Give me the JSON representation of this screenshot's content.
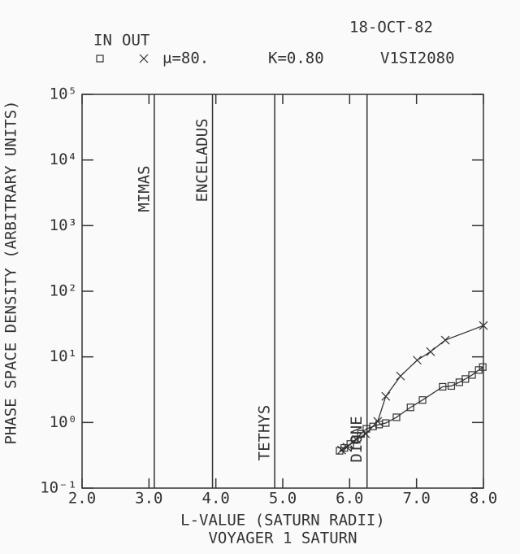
{
  "chart_data": {
    "type": "line",
    "date": "18-OCT-82",
    "title": "VOYAGER 1 SATURN",
    "parameters": [
      "μ=80.",
      "K=0.80",
      "V1SI2080"
    ],
    "xlabel": "L-VALUE (SATURN RADII)",
    "ylabel": "PHASE SPACE DENSITY (ARBITRARY UNITS)",
    "log_y": true,
    "xlim": [
      2.0,
      8.0
    ],
    "ylim": [
      0.1,
      100000
    ],
    "xticks": [
      {
        "value": 2,
        "label": "2.0"
      },
      {
        "value": 3,
        "label": "3.0"
      },
      {
        "value": 4,
        "label": "4.0"
      },
      {
        "value": 5,
        "label": "5.0"
      },
      {
        "value": 6,
        "label": "6.0"
      },
      {
        "value": 7,
        "label": "7.0"
      },
      {
        "value": 8,
        "label": "8.0"
      }
    ],
    "yticks": [
      {
        "value": 0.1,
        "label": "10⁻¹"
      },
      {
        "value": 1,
        "label": "10⁰"
      },
      {
        "value": 10,
        "label": "10¹"
      },
      {
        "value": 100,
        "label": "10²"
      },
      {
        "value": 1000,
        "label": "10³"
      },
      {
        "value": 10000,
        "label": "10⁴"
      },
      {
        "value": 100000,
        "label": "10⁵"
      }
    ],
    "annotations": [
      {
        "x": 3.08,
        "label": "MIMAS"
      },
      {
        "x": 3.95,
        "label": "ENCELADUS"
      },
      {
        "x": 4.88,
        "label": "TETHYS"
      },
      {
        "x": 6.26,
        "label": "DIONE"
      }
    ],
    "series": [
      {
        "name": "IN",
        "marker": "square",
        "color": "#333333",
        "x": [
          5.85,
          5.92,
          6.01,
          6.08,
          6.17,
          6.25,
          6.35,
          6.44,
          6.54,
          6.7,
          6.91,
          7.09,
          7.39,
          7.52,
          7.64,
          7.73,
          7.83,
          7.93,
          7.99
        ],
        "values": [
          0.37,
          0.41,
          0.47,
          0.54,
          0.67,
          0.8,
          0.87,
          0.93,
          0.98,
          1.2,
          1.7,
          2.2,
          3.5,
          3.6,
          4.1,
          4.6,
          5.3,
          6.3,
          7.0
        ]
      },
      {
        "name": "OUT",
        "marker": "cross",
        "color": "#333333",
        "x": [
          5.88,
          5.96,
          6.1,
          6.24,
          6.42,
          6.54,
          6.76,
          7.01,
          7.21,
          7.43,
          8.0
        ],
        "values": [
          0.38,
          0.42,
          0.55,
          0.67,
          1.04,
          2.5,
          5.1,
          8.9,
          12,
          18,
          30
        ]
      }
    ]
  }
}
